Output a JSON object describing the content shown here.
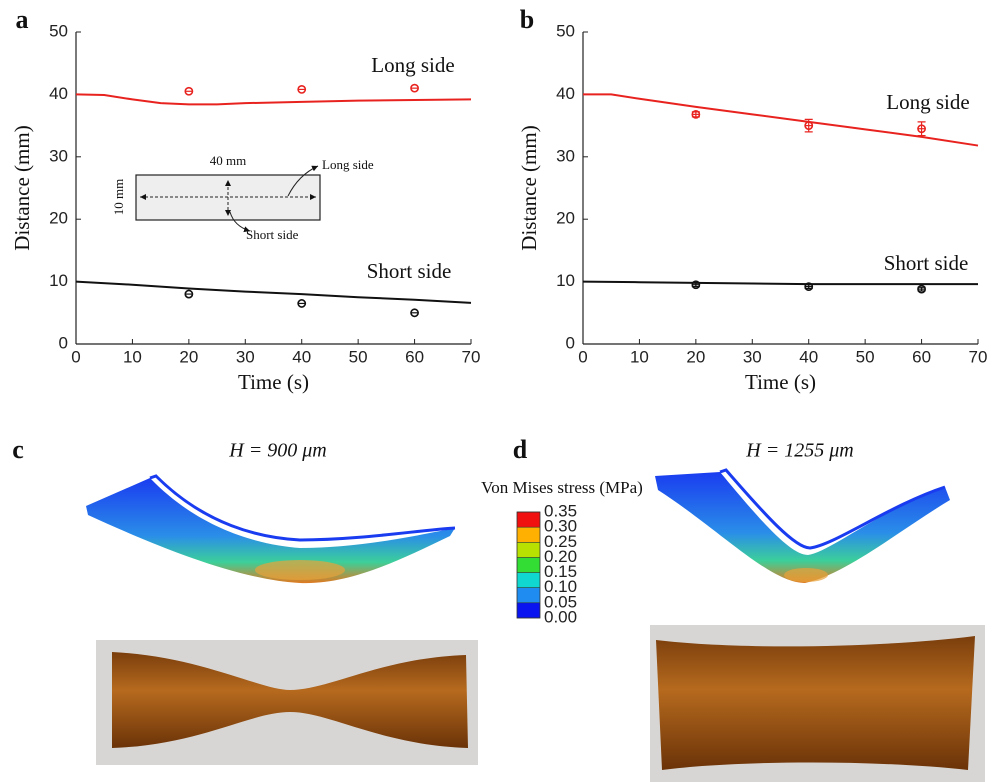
{
  "chart_data": [
    {
      "type": "line",
      "panel": "a",
      "xlabel": "Time (s)",
      "ylabel": "Distance (mm)",
      "xlim": [
        0,
        70
      ],
      "xticks": [
        0,
        10,
        20,
        30,
        40,
        50,
        60,
        70
      ],
      "ylim": [
        0,
        50
      ],
      "yticks": [
        0,
        10,
        20,
        30,
        40,
        50
      ],
      "annotations": [
        "Long side",
        "Short side"
      ],
      "inset": {
        "width_label": "40 mm",
        "height_label": "10 mm",
        "long_label": "Long side",
        "short_label": "Short side"
      },
      "series": [
        {
          "style": "line",
          "color": "#e8231f",
          "x": [
            0,
            5,
            10,
            15,
            20,
            25,
            30,
            40,
            50,
            60,
            70
          ],
          "values": [
            40,
            39.9,
            39.2,
            38.6,
            38.4,
            38.4,
            38.6,
            38.8,
            39,
            39.1,
            39.2
          ]
        },
        {
          "style": "line",
          "color": "#111111",
          "x": [
            0,
            10,
            20,
            30,
            40,
            50,
            60,
            70
          ],
          "values": [
            10,
            9.5,
            8.9,
            8.4,
            8,
            7.5,
            7.1,
            6.6
          ]
        },
        {
          "style": "marker",
          "color": "#e8231f",
          "x": [
            20,
            40,
            60
          ],
          "values": [
            40.5,
            40.8,
            41
          ]
        },
        {
          "style": "marker",
          "color": "#111111",
          "x": [
            20,
            40,
            60
          ],
          "values": [
            8,
            6.5,
            5
          ]
        }
      ]
    },
    {
      "type": "line",
      "panel": "b",
      "xlabel": "Time (s)",
      "ylabel": "Distance (mm)",
      "xlim": [
        0,
        70
      ],
      "xticks": [
        0,
        10,
        20,
        30,
        40,
        50,
        60,
        70
      ],
      "ylim": [
        0,
        50
      ],
      "yticks": [
        0,
        10,
        20,
        30,
        40,
        50
      ],
      "annotations": [
        "Long side",
        "Short side"
      ],
      "series": [
        {
          "style": "line",
          "color": "#e8231f",
          "x": [
            0,
            5,
            10,
            20,
            30,
            40,
            50,
            60,
            70
          ],
          "values": [
            40,
            40,
            39.3,
            38,
            36.8,
            35.6,
            34.4,
            33.2,
            31.8
          ]
        },
        {
          "style": "line",
          "color": "#111111",
          "x": [
            0,
            10,
            20,
            30,
            40,
            50,
            60,
            70
          ],
          "values": [
            10,
            9.9,
            9.8,
            9.7,
            9.6,
            9.6,
            9.6,
            9.6
          ]
        },
        {
          "style": "marker",
          "color": "#e8231f",
          "x": [
            20,
            40,
            60
          ],
          "values": [
            36.8,
            35,
            34.5
          ],
          "errors": [
            0.4,
            1,
            1.1
          ]
        },
        {
          "style": "marker",
          "color": "#111111",
          "x": [
            20,
            40,
            60
          ],
          "values": [
            9.5,
            9.2,
            8.8
          ],
          "errors": [
            0.3,
            0.3,
            0.3
          ]
        }
      ]
    },
    {
      "type": "colorbar",
      "title": "Von Mises stress (MPa)",
      "ylim": [
        0,
        0.35
      ],
      "yticks": [
        {
          "value": 0,
          "label": "0.00"
        },
        {
          "value": 0.05,
          "label": "0.05"
        },
        {
          "value": 0.1,
          "label": "0.10"
        },
        {
          "value": 0.15,
          "label": "0.15"
        },
        {
          "value": 0.2,
          "label": "0.20"
        },
        {
          "value": 0.25,
          "label": "0.25"
        },
        {
          "value": 0.3,
          "label": "0.30"
        },
        {
          "value": 0.35,
          "label": "0.35"
        }
      ],
      "colors": [
        "#0a14f0",
        "#1e8cf0",
        "#10d8d0",
        "#33dd33",
        "#b8e000",
        "#ffb000",
        "#f01010"
      ]
    }
  ],
  "panels": [
    {
      "label": "c",
      "title": "H = 900 μm"
    },
    {
      "label": "d",
      "title": "H = 1255 μm"
    }
  ]
}
